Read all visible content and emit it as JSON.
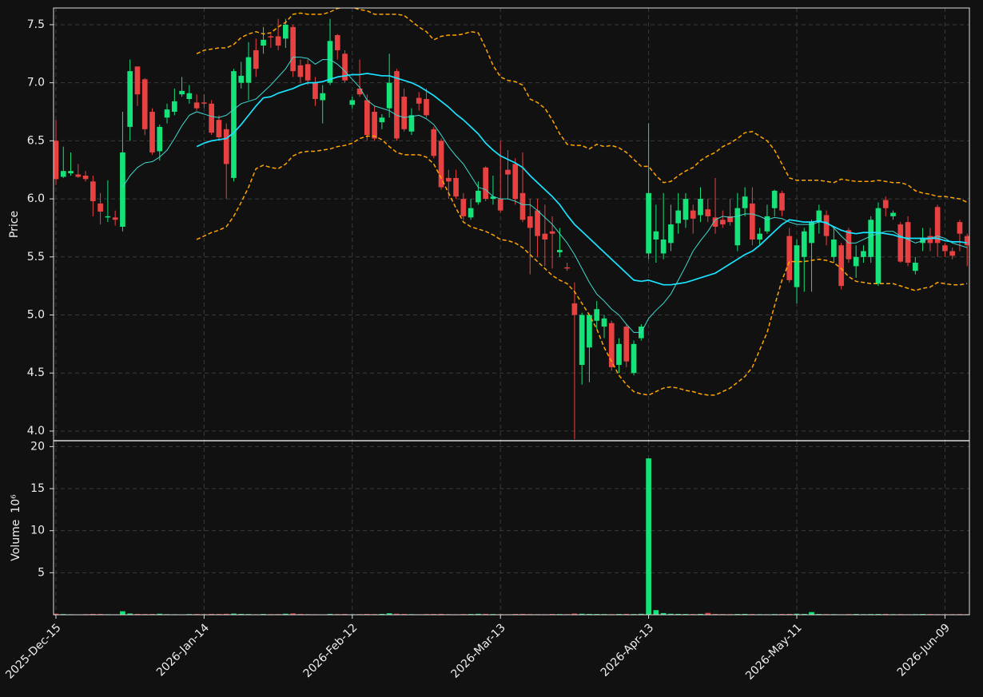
{
  "chart_data": {
    "type": "candlestick",
    "ylabel": "Price",
    "grid": true,
    "up_color": "#16e27a",
    "down_color": "#e84142",
    "categories": [
      "2025-Dec-15",
      null,
      null,
      null,
      null,
      null,
      null,
      null,
      null,
      null,
      null,
      null,
      null,
      null,
      null,
      null,
      null,
      null,
      null,
      null,
      "2026-Jan-14",
      null,
      null,
      null,
      null,
      null,
      null,
      null,
      null,
      null,
      null,
      null,
      null,
      null,
      null,
      null,
      null,
      null,
      null,
      null,
      "2026-Feb-12",
      null,
      null,
      null,
      null,
      null,
      null,
      null,
      null,
      null,
      null,
      null,
      null,
      null,
      null,
      null,
      null,
      null,
      null,
      null,
      "2026-Mar-13",
      null,
      null,
      null,
      null,
      null,
      null,
      null,
      null,
      null,
      null,
      null,
      null,
      null,
      null,
      null,
      null,
      null,
      null,
      null,
      "2026-Apr-13",
      null,
      null,
      null,
      null,
      null,
      null,
      null,
      null,
      null,
      null,
      null,
      null,
      null,
      null,
      null,
      null,
      null,
      null,
      null,
      "2026-May-11",
      null,
      null,
      null,
      null,
      null,
      null,
      null,
      null,
      null,
      null,
      null,
      null,
      null,
      null,
      null,
      null,
      null,
      null,
      null,
      "2026-Jun-09",
      null,
      null,
      null
    ],
    "open": [
      6.5,
      6.19,
      6.22,
      6.21,
      6.2,
      6.15,
      5.96,
      5.84,
      5.84,
      5.76,
      6.62,
      7.14,
      7.03,
      6.75,
      6.41,
      6.7,
      6.75,
      6.9,
      6.86,
      6.83,
      6.83,
      6.82,
      6.68,
      6.6,
      6.18,
      7.0,
      7.0,
      7.28,
      7.32,
      7.4,
      7.4,
      7.38,
      7.48,
      7.15,
      7.16,
      7.0,
      6.85,
      7.0,
      7.41,
      7.25,
      6.81,
      6.95,
      6.85,
      6.75,
      6.66,
      6.78,
      7.1,
      6.88,
      6.58,
      6.87,
      6.86,
      6.6,
      6.5,
      6.18,
      6.18,
      6.0,
      5.84,
      5.97,
      6.27,
      6.0,
      6.0,
      6.25,
      6.3,
      6.05,
      5.85,
      5.9,
      5.7,
      5.72,
      5.54,
      5.41,
      5.1,
      4.57,
      4.72,
      4.95,
      4.9,
      4.93,
      4.57,
      4.9,
      4.5,
      4.8,
      5.53,
      5.65,
      5.53,
      5.62,
      5.79,
      5.82,
      5.9,
      5.86,
      5.91,
      5.84,
      5.82,
      5.85,
      5.6,
      5.92,
      5.96,
      5.65,
      5.72,
      5.92,
      6.05,
      5.68,
      5.24,
      5.5,
      5.62,
      5.8,
      5.86,
      5.5,
      5.6,
      5.73,
      5.42,
      5.5,
      5.5,
      5.27,
      5.99,
      5.85,
      5.78,
      5.8,
      5.38,
      5.62,
      5.68,
      5.93,
      5.6,
      5.55,
      5.8,
      5.68
    ],
    "high": [
      6.68,
      6.45,
      6.4,
      6.3,
      6.24,
      6.2,
      6.05,
      6.16,
      5.9,
      6.75,
      7.2,
      7.14,
      7.04,
      6.78,
      6.64,
      6.82,
      6.95,
      7.05,
      6.98,
      6.9,
      6.9,
      6.85,
      6.72,
      6.65,
      7.12,
      7.18,
      7.35,
      7.38,
      7.48,
      7.42,
      7.55,
      7.55,
      7.5,
      7.2,
      7.2,
      7.05,
      6.98,
      7.55,
      7.42,
      7.28,
      6.88,
      7.2,
      6.9,
      6.8,
      6.73,
      7.25,
      7.12,
      6.95,
      6.78,
      6.92,
      6.95,
      6.62,
      6.52,
      6.25,
      6.25,
      6.05,
      6.0,
      6.15,
      6.28,
      6.2,
      6.5,
      6.42,
      6.35,
      6.4,
      6.0,
      6.0,
      5.95,
      5.85,
      5.75,
      5.45,
      5.28,
      5.02,
      5.0,
      5.12,
      5.0,
      4.95,
      4.8,
      4.92,
      4.78,
      4.92,
      6.65,
      5.95,
      6.05,
      5.95,
      6.05,
      6.05,
      5.95,
      6.1,
      6.0,
      6.18,
      5.9,
      6.0,
      6.05,
      6.1,
      6.1,
      5.75,
      5.95,
      6.08,
      6.07,
      5.75,
      5.65,
      5.75,
      5.82,
      5.95,
      5.9,
      5.75,
      5.62,
      5.75,
      5.6,
      5.6,
      5.85,
      5.97,
      6.02,
      5.9,
      5.8,
      5.85,
      5.5,
      5.75,
      5.75,
      5.95,
      5.62,
      5.58,
      5.82,
      5.7
    ],
    "low": [
      6.12,
      6.18,
      6.2,
      6.18,
      6.15,
      5.85,
      5.78,
      5.8,
      5.77,
      5.72,
      6.5,
      6.8,
      6.55,
      6.38,
      6.33,
      6.65,
      6.72,
      6.88,
      6.82,
      6.76,
      6.78,
      6.55,
      6.5,
      6.0,
      6.15,
      6.95,
      6.85,
      7.05,
      7.25,
      7.3,
      7.28,
      7.3,
      7.05,
      7.0,
      6.98,
      6.8,
      6.65,
      6.98,
      7.2,
      7.0,
      6.78,
      6.88,
      6.5,
      6.5,
      6.6,
      6.7,
      6.5,
      6.58,
      6.55,
      6.76,
      6.7,
      6.35,
      6.08,
      6.0,
      6.0,
      5.82,
      5.82,
      5.95,
      5.98,
      5.95,
      5.88,
      6.0,
      5.95,
      5.8,
      5.35,
      5.5,
      5.42,
      5.4,
      5.5,
      5.38,
      3.93,
      4.4,
      4.42,
      4.88,
      4.8,
      4.52,
      4.5,
      4.55,
      4.48,
      4.78,
      5.48,
      5.45,
      5.48,
      5.55,
      5.7,
      5.75,
      5.7,
      5.8,
      5.8,
      5.7,
      5.75,
      5.77,
      5.55,
      5.85,
      5.6,
      5.6,
      5.7,
      5.85,
      5.85,
      5.28,
      5.1,
      5.2,
      5.2,
      5.7,
      5.6,
      5.45,
      5.22,
      5.45,
      5.32,
      5.45,
      5.45,
      5.25,
      5.85,
      5.82,
      5.45,
      5.42,
      5.35,
      5.55,
      5.55,
      5.5,
      5.5,
      5.48,
      5.55,
      5.42
    ],
    "close": [
      6.17,
      6.24,
      6.24,
      6.19,
      6.17,
      5.98,
      5.89,
      5.85,
      5.82,
      6.4,
      7.1,
      6.9,
      6.6,
      6.4,
      6.62,
      6.77,
      6.84,
      6.93,
      6.91,
      6.78,
      6.82,
      6.57,
      6.53,
      6.3,
      7.1,
      7.06,
      7.22,
      7.12,
      7.37,
      7.39,
      7.32,
      7.5,
      7.1,
      7.05,
      7.02,
      6.86,
      6.91,
      7.36,
      7.28,
      7.02,
      6.85,
      6.9,
      6.55,
      6.52,
      6.7,
      7.0,
      6.52,
      6.6,
      6.72,
      6.82,
      6.72,
      6.37,
      6.1,
      6.15,
      6.02,
      5.85,
      5.92,
      6.07,
      6.0,
      6.02,
      5.9,
      6.21,
      6.0,
      5.82,
      5.75,
      5.68,
      5.65,
      5.7,
      5.56,
      5.4,
      5.0,
      5.0,
      5.0,
      5.05,
      4.97,
      4.55,
      4.75,
      4.6,
      4.75,
      4.9,
      6.05,
      5.72,
      5.65,
      5.78,
      5.9,
      6.0,
      5.83,
      6.0,
      5.85,
      5.76,
      5.78,
      5.8,
      5.92,
      6.02,
      5.65,
      5.7,
      5.85,
      6.07,
      5.9,
      5.3,
      5.6,
      5.72,
      5.8,
      5.9,
      5.68,
      5.65,
      5.25,
      5.48,
      5.5,
      5.55,
      5.82,
      5.92,
      5.92,
      5.88,
      5.46,
      5.45,
      5.45,
      5.66,
      5.62,
      5.62,
      5.55,
      5.51,
      5.7,
      5.6
    ],
    "ylim": [
      3.917,
      7.644
    ],
    "yticks": [
      {
        "value": 4,
        "label": "4.0"
      },
      4.5,
      {
        "value": 5,
        "label": "5.0"
      },
      5.5,
      {
        "value": 6,
        "label": "6.0"
      },
      6.5,
      {
        "value": 7,
        "label": "7.0"
      },
      7.5
    ],
    "overlays": [
      {
        "color": "#3fd9d0",
        "style": "thin",
        "values": [
          null,
          null,
          null,
          null,
          null,
          null,
          null,
          null,
          null,
          6.1,
          6.2,
          6.27,
          6.31,
          6.32,
          6.36,
          6.42,
          6.52,
          6.63,
          6.72,
          6.75,
          6.73,
          6.71,
          6.7,
          6.72,
          6.77,
          6.82,
          6.84,
          6.86,
          6.92,
          6.98,
          7.05,
          7.12,
          7.22,
          7.22,
          7.21,
          7.16,
          7.2,
          7.2,
          7.16,
          7.1,
          7.03,
          6.96,
          6.85,
          6.8,
          6.78,
          6.76,
          6.72,
          6.7,
          6.71,
          6.72,
          6.69,
          6.64,
          6.55,
          6.45,
          6.37,
          6.3,
          6.2,
          6.1,
          6.08,
          6.02,
          6.0,
          6.0,
          5.98,
          5.95,
          5.95,
          5.9,
          5.84,
          5.78,
          5.7,
          5.62,
          5.52,
          5.4,
          5.28,
          5.18,
          5.12,
          5.05,
          5.0,
          4.92,
          4.85,
          4.85,
          4.97,
          5.04,
          5.1,
          5.18,
          5.3,
          5.42,
          5.55,
          5.64,
          5.72,
          5.82,
          5.85,
          5.84,
          5.85,
          5.87,
          5.87,
          5.85,
          5.82,
          5.84,
          5.83,
          5.8,
          5.78,
          5.78,
          5.78,
          5.8,
          5.8,
          5.75,
          5.68,
          5.62,
          5.62,
          5.65,
          5.68,
          5.7,
          5.72,
          5.72,
          5.68,
          5.65,
          5.62,
          5.64,
          5.66,
          5.68,
          5.66,
          5.62,
          5.6,
          5.58
        ]
      },
      {
        "color": "#19e3ff",
        "style": "thick",
        "values": [
          null,
          null,
          null,
          null,
          null,
          null,
          null,
          null,
          null,
          null,
          null,
          null,
          null,
          null,
          null,
          null,
          null,
          null,
          null,
          6.45,
          6.48,
          6.5,
          6.51,
          6.52,
          6.57,
          6.64,
          6.72,
          6.8,
          6.87,
          6.88,
          6.91,
          6.93,
          6.95,
          6.98,
          7.0,
          7.0,
          7.01,
          7.03,
          7.05,
          7.06,
          7.07,
          7.07,
          7.08,
          7.07,
          7.06,
          7.06,
          7.04,
          7.02,
          7.0,
          6.97,
          6.93,
          6.89,
          6.84,
          6.79,
          6.73,
          6.68,
          6.62,
          6.56,
          6.48,
          6.42,
          6.37,
          6.34,
          6.31,
          6.27,
          6.2,
          6.14,
          6.08,
          6.02,
          5.95,
          5.86,
          5.78,
          5.72,
          5.66,
          5.6,
          5.54,
          5.48,
          5.42,
          5.36,
          5.3,
          5.29,
          5.3,
          5.28,
          5.26,
          5.26,
          5.27,
          5.28,
          5.3,
          5.32,
          5.34,
          5.36,
          5.4,
          5.44,
          5.48,
          5.52,
          5.55,
          5.6,
          5.66,
          5.72,
          5.78,
          5.82,
          5.81,
          5.8,
          5.8,
          5.81,
          5.79,
          5.76,
          5.73,
          5.71,
          5.7,
          5.71,
          5.71,
          5.71,
          5.7,
          5.69,
          5.67,
          5.66,
          5.66,
          5.66,
          5.66,
          5.66,
          5.64,
          5.63,
          5.63,
          5.62
        ]
      },
      {
        "color": "#ffa500",
        "style": "dashed",
        "values": [
          null,
          null,
          null,
          null,
          null,
          null,
          null,
          null,
          null,
          null,
          null,
          null,
          null,
          null,
          null,
          null,
          null,
          null,
          null,
          7.25,
          7.28,
          7.29,
          7.3,
          7.3,
          7.33,
          7.39,
          7.42,
          7.44,
          7.42,
          7.43,
          7.48,
          7.52,
          7.59,
          7.6,
          7.59,
          7.59,
          7.59,
          7.61,
          7.64,
          7.65,
          7.65,
          7.63,
          7.62,
          7.59,
          7.59,
          7.59,
          7.59,
          7.58,
          7.53,
          7.48,
          7.44,
          7.37,
          7.4,
          7.41,
          7.41,
          7.42,
          7.44,
          7.43,
          7.3,
          7.15,
          7.05,
          7.02,
          7.01,
          6.98,
          6.86,
          6.83,
          6.78,
          6.68,
          6.56,
          6.47,
          6.46,
          6.46,
          6.43,
          6.47,
          6.45,
          6.46,
          6.44,
          6.4,
          6.34,
          6.28,
          6.28,
          6.2,
          6.14,
          6.15,
          6.2,
          6.24,
          6.27,
          6.33,
          6.37,
          6.4,
          6.45,
          6.48,
          6.52,
          6.57,
          6.58,
          6.54,
          6.5,
          6.42,
          6.3,
          6.18,
          6.16,
          6.16,
          6.16,
          6.16,
          6.15,
          6.14,
          6.17,
          6.16,
          6.15,
          6.15,
          6.15,
          6.16,
          6.15,
          6.14,
          6.14,
          6.12,
          6.07,
          6.05,
          6.04,
          6.02,
          6.02,
          6.01,
          6.0,
          5.97
        ]
      },
      {
        "color": "#ffa500",
        "style": "dashed",
        "values": [
          null,
          null,
          null,
          null,
          null,
          null,
          null,
          null,
          null,
          null,
          null,
          null,
          null,
          null,
          null,
          null,
          null,
          null,
          null,
          5.65,
          5.68,
          5.71,
          5.73,
          5.76,
          5.85,
          5.97,
          6.1,
          6.26,
          6.29,
          6.27,
          6.26,
          6.3,
          6.37,
          6.4,
          6.41,
          6.41,
          6.42,
          6.43,
          6.45,
          6.46,
          6.48,
          6.52,
          6.54,
          6.54,
          6.51,
          6.45,
          6.4,
          6.38,
          6.38,
          6.38,
          6.36,
          6.3,
          6.18,
          6.05,
          5.92,
          5.8,
          5.76,
          5.74,
          5.72,
          5.69,
          5.65,
          5.64,
          5.62,
          5.58,
          5.52,
          5.46,
          5.4,
          5.34,
          5.3,
          5.27,
          5.2,
          5.1,
          5.0,
          4.88,
          4.72,
          4.6,
          4.48,
          4.4,
          4.34,
          4.32,
          4.31,
          4.34,
          4.37,
          4.38,
          4.37,
          4.35,
          4.34,
          4.32,
          4.31,
          4.31,
          4.34,
          4.37,
          4.42,
          4.47,
          4.55,
          4.7,
          4.85,
          5.08,
          5.3,
          5.46,
          5.46,
          5.46,
          5.47,
          5.48,
          5.47,
          5.45,
          5.4,
          5.33,
          5.29,
          5.28,
          5.27,
          5.27,
          5.27,
          5.27,
          5.25,
          5.23,
          5.21,
          5.23,
          5.24,
          5.28,
          5.27,
          5.26,
          5.26,
          5.27
        ]
      }
    ],
    "volume": {
      "ylabel": "Volume",
      "scale_label": "10⁶",
      "values": [
        0.12,
        0.08,
        0.06,
        0.05,
        0.07,
        0.1,
        0.09,
        0.06,
        0.05,
        0.42,
        0.15,
        0.1,
        0.08,
        0.09,
        0.12,
        0.07,
        0.06,
        0.05,
        0.08,
        0.09,
        0.07,
        0.1,
        0.09,
        0.11,
        0.14,
        0.1,
        0.08,
        0.06,
        0.09,
        0.07,
        0.08,
        0.12,
        0.16,
        0.09,
        0.07,
        0.06,
        0.05,
        0.1,
        0.08,
        0.09,
        0.06,
        0.07,
        0.09,
        0.08,
        0.1,
        0.18,
        0.12,
        0.09,
        0.07,
        0.06,
        0.08,
        0.09,
        0.1,
        0.07,
        0.06,
        0.08,
        0.09,
        0.11,
        0.1,
        0.08,
        0.07,
        0.06,
        0.09,
        0.1,
        0.08,
        0.07,
        0.06,
        0.09,
        0.08,
        0.07,
        0.14,
        0.12,
        0.1,
        0.09,
        0.08,
        0.07,
        0.09,
        0.1,
        0.08,
        0.11,
        18.6,
        0.55,
        0.2,
        0.12,
        0.1,
        0.09,
        0.08,
        0.1,
        0.22,
        0.09,
        0.08,
        0.07,
        0.09,
        0.1,
        0.08,
        0.07,
        0.06,
        0.08,
        0.09,
        0.1,
        0.12,
        0.1,
        0.32,
        0.09,
        0.08,
        0.07,
        0.06,
        0.08,
        0.09,
        0.07,
        0.08,
        0.09,
        0.1,
        0.07,
        0.08,
        0.06,
        0.07,
        0.09,
        0.08,
        0.07,
        0.06,
        0.07,
        0.08,
        0.07
      ],
      "ylim": [
        0,
        20.7
      ],
      "yticks": [
        5,
        10,
        15,
        20
      ]
    }
  }
}
